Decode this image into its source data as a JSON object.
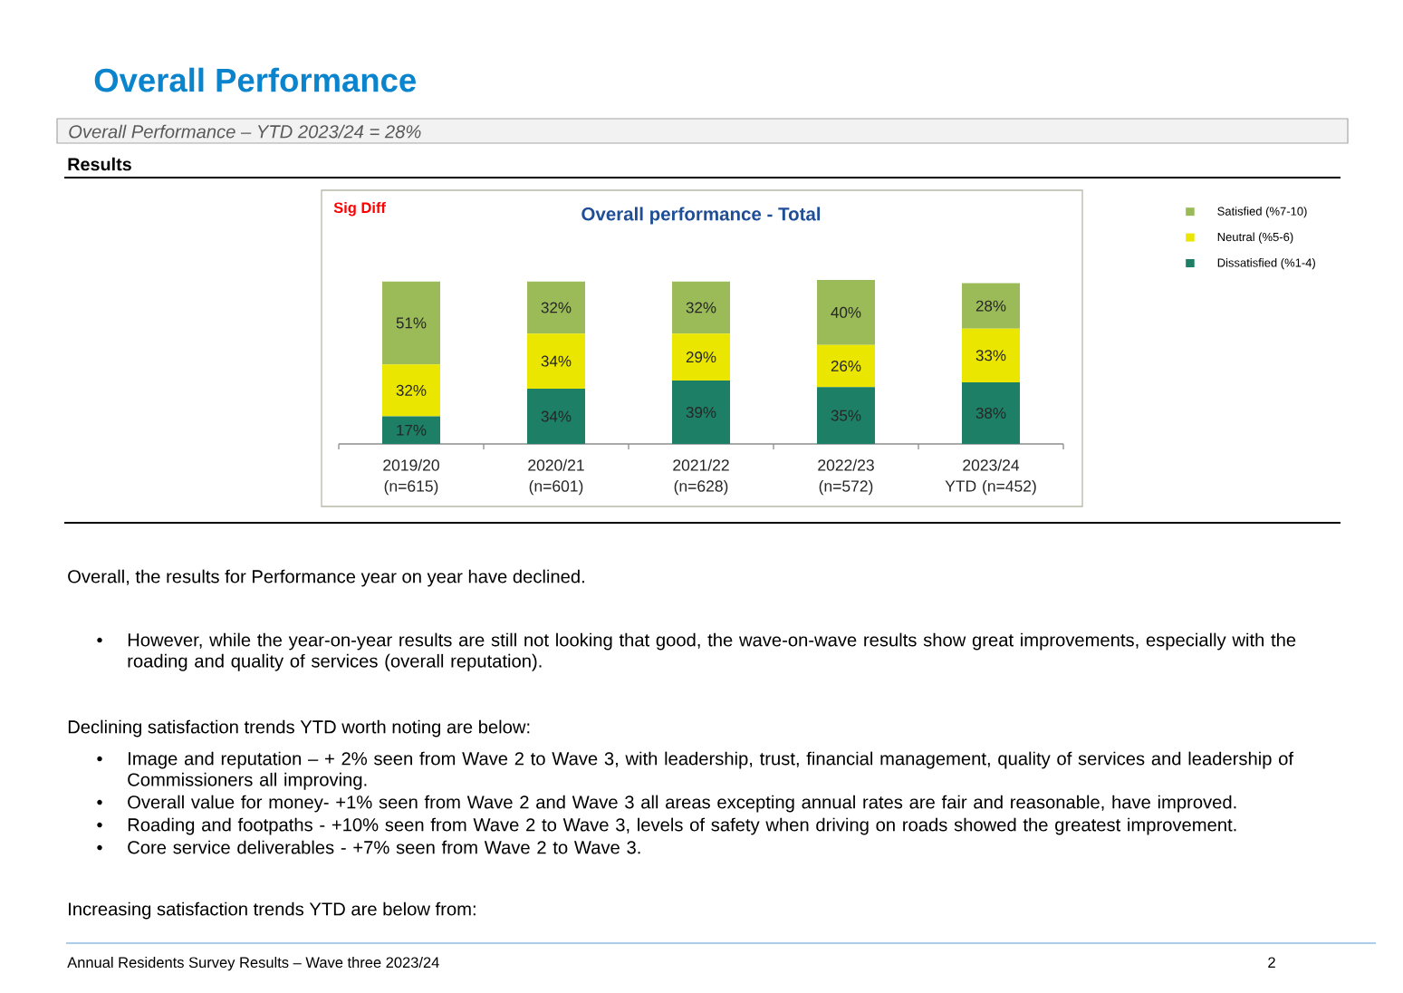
{
  "chart_data": {
    "type": "bar",
    "stacked": true,
    "title": "Overall performance - Total",
    "subtitle": "Overall Performance – YTD 2023/24 = 28%",
    "categories": [
      "2019/20 (n=615)",
      "2020/21 (n=601)",
      "2021/22 (n=628)",
      "2022/23 (n=572)",
      "2023/24 YTD (n=452)"
    ],
    "series": [
      {
        "name": "Dissatisfied (%1-4)",
        "color": "#1d7f66",
        "values": [
          17,
          34,
          39,
          35,
          38
        ],
        "value_labels": [
          "17%",
          "34%",
          "39%",
          "35%",
          "38%"
        ]
      },
      {
        "name": "Neutral (%5-6)",
        "color": "#eae600",
        "values": [
          32,
          34,
          29,
          26,
          33
        ],
        "value_labels": [
          "32%",
          "34%",
          "29%",
          "26%",
          "33%"
        ]
      },
      {
        "name": "Satisfied (%7-10)",
        "color": "#9bbb59",
        "values": [
          51,
          32,
          32,
          40,
          28
        ],
        "value_labels": [
          "51%",
          "32%",
          "32%",
          "40%",
          "28%"
        ]
      }
    ],
    "tick_labels": "x",
    "legend": "top right",
    "annotations": [
      "Overall Performance",
      "Results",
      "Sig Diff",
      "Overall, the results for Performance year on year have declined.",
      "•",
      "However, while the year-on-year results are still not looking that good, the wave-on-wave results show great improvements, especially with the roading and quality of services (overall reputation).",
      "Declining satisfaction trends YTD worth noting are below:",
      "•",
      "Image and reputation – + 2% seen from Wave 2 to Wave 3, with leadership, trust, financial management, quality of services and leadership of Commissioners all improving.",
      "•",
      "Overall value for money- +1% seen from Wave 2 and Wave 3 all areas excepting annual rates are fair and reasonable, have improved.",
      "•",
      "Roading and footpaths - +10% seen from Wave 2 to Wave 3, levels of safety when driving on roads showed the greatest improvement.",
      "•",
      "Core service deliverables - +7% seen from Wave 2 to Wave 3.",
      "Increasing satisfaction trends YTD are below from:",
      "Annual Residents Survey Results – Wave three 2023/24",
      "2"
    ]
  }
}
